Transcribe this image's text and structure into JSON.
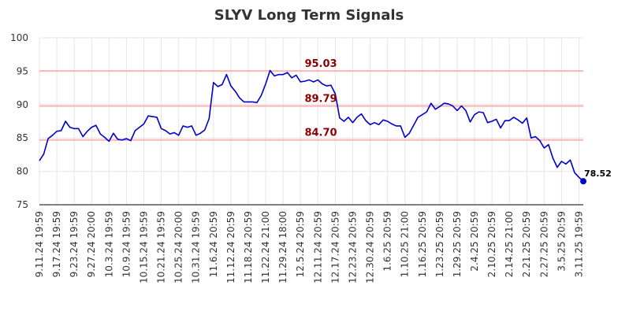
{
  "chart_data": {
    "type": "line",
    "title": "SLYV Long Term Signals",
    "xlabel": "",
    "ylabel": "",
    "ylim": [
      75,
      100
    ],
    "yticks": [
      75,
      80,
      85,
      90,
      95,
      100
    ],
    "grid": true,
    "x_tick_labels": [
      "9.11.24 19:59",
      "9.17.24 19:59",
      "9.23.24 19:59",
      "9.27.24 20:00",
      "10.3.24 19:59",
      "10.9.24 19:59",
      "10.15.24 19:59",
      "10.21.24 19:59",
      "10.25.24 20:00",
      "10.31.24 19:59",
      "11.6.24 20:59",
      "11.12.24 20:59",
      "11.18.24 20:59",
      "11.22.24 21:00",
      "11.29.24 18:00",
      "12.5.24 20:59",
      "12.11.24 20:59",
      "12.17.24 20:59",
      "12.23.24 20:59",
      "12.30.24 20:59",
      "1.6.25 20:59",
      "1.10.25 21:00",
      "1.16.25 20:59",
      "1.23.25 20:59",
      "1.29.25 20:59",
      "2.4.25 20:59",
      "2.10.25 20:59",
      "2.14.25 21:00",
      "2.21.25 20:59",
      "2.27.25 20:59",
      "3.5.25 20:59",
      "3.11.25 19:59"
    ],
    "tick_every": 4,
    "reference_lines": [
      {
        "value": 95.03,
        "label": "95.03",
        "color": "#ffb3b3"
      },
      {
        "value": 89.79,
        "label": "89.79",
        "color": "#ffb3b3"
      },
      {
        "value": 84.7,
        "label": "84.70",
        "color": "#ffb3b3"
      }
    ],
    "series": [
      {
        "color": "#0000cc",
        "values": [
          81.6,
          82.6,
          84.9,
          85.4,
          86.0,
          86.1,
          87.5,
          86.6,
          86.4,
          86.4,
          85.2,
          86.0,
          86.6,
          86.9,
          85.6,
          85.1,
          84.5,
          85.7,
          84.8,
          84.7,
          84.9,
          84.6,
          86.1,
          86.6,
          87.1,
          88.3,
          88.2,
          88.1,
          86.4,
          86.1,
          85.6,
          85.8,
          85.4,
          86.8,
          86.6,
          86.8,
          85.4,
          85.7,
          86.2,
          87.9,
          93.3,
          92.7,
          93.0,
          94.5,
          92.8,
          92.0,
          91.0,
          90.4,
          90.4,
          90.4,
          90.3,
          91.4,
          93.1,
          95.1,
          94.3,
          94.5,
          94.5,
          94.8,
          94.0,
          94.4,
          93.4,
          93.5,
          93.7,
          93.4,
          93.7,
          93.1,
          92.8,
          92.9,
          91.6,
          88.0,
          87.5,
          88.1,
          87.3,
          88.1,
          88.6,
          87.6,
          87.0,
          87.3,
          87.0,
          87.7,
          87.5,
          87.1,
          86.8,
          86.8,
          85.1,
          85.7,
          86.9,
          88.1,
          88.5,
          88.9,
          90.2,
          89.3,
          89.7,
          90.2,
          90.1,
          89.8,
          89.1,
          89.8,
          89.1,
          87.4,
          88.5,
          88.9,
          88.8,
          87.3,
          87.5,
          87.8,
          86.5,
          87.6,
          87.6,
          88.1,
          87.7,
          87.2,
          88.0,
          85.0,
          85.2,
          84.6,
          83.5,
          84.0,
          82.0,
          80.6,
          81.5,
          81.1,
          81.7,
          79.8,
          79.1,
          78.52
        ]
      }
    ],
    "last_value_label": "78.52"
  }
}
